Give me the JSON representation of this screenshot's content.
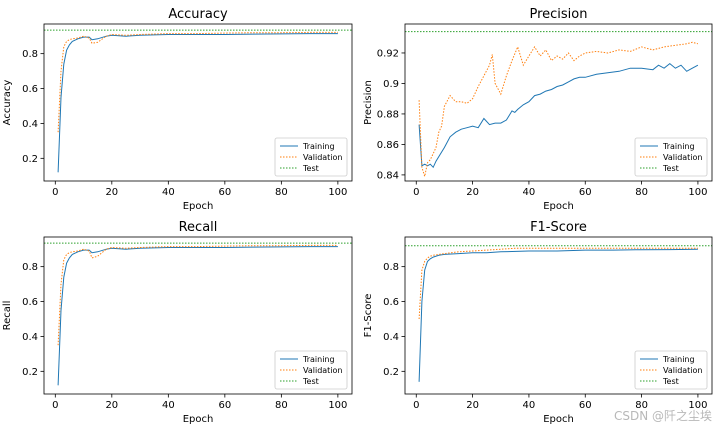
{
  "watermark": "CSDN @阡之尘埃",
  "colors": {
    "training": "#1f77b4",
    "validation": "#ff7f0e",
    "test": "#2ca02c"
  },
  "chart_data": [
    {
      "type": "line",
      "title": "Accuracy",
      "xlabel": "Epoch",
      "ylabel": "Accuracy",
      "xlim": [
        -4,
        105
      ],
      "ylim": [
        0.07,
        0.97
      ],
      "xticks": [
        0,
        20,
        40,
        60,
        80,
        100
      ],
      "yticks": [
        0.2,
        0.4,
        0.6,
        0.8
      ],
      "legend_position": "lower-right",
      "series": [
        {
          "name": "Training",
          "style": "solid",
          "x": [
            1,
            2,
            3,
            4,
            5,
            6,
            8,
            10,
            12,
            13,
            15,
            18,
            20,
            25,
            30,
            40,
            50,
            60,
            70,
            80,
            90,
            100
          ],
          "y": [
            0.12,
            0.55,
            0.74,
            0.82,
            0.85,
            0.87,
            0.885,
            0.895,
            0.895,
            0.88,
            0.885,
            0.9,
            0.905,
            0.9,
            0.905,
            0.91,
            0.91,
            0.91,
            0.912,
            0.913,
            0.915,
            0.915
          ]
        },
        {
          "name": "Validation",
          "style": "dotted",
          "x": [
            1,
            2,
            3,
            4,
            5,
            6,
            8,
            10,
            12,
            13,
            15,
            18,
            20,
            25,
            30,
            40,
            50,
            60,
            70,
            80,
            90,
            100
          ],
          "y": [
            0.35,
            0.7,
            0.84,
            0.87,
            0.88,
            0.885,
            0.89,
            0.9,
            0.89,
            0.86,
            0.865,
            0.9,
            0.91,
            0.905,
            0.91,
            0.915,
            0.915,
            0.918,
            0.92,
            0.92,
            0.922,
            0.922
          ]
        },
        {
          "name": "Test",
          "style": "dashed-hline",
          "y": 0.935
        }
      ]
    },
    {
      "type": "line",
      "title": "Precision",
      "xlabel": "Epoch",
      "ylabel": "Precision",
      "xlim": [
        -4,
        105
      ],
      "ylim": [
        0.836,
        0.939
      ],
      "xticks": [
        0,
        20,
        40,
        60,
        80,
        100
      ],
      "yticks": [
        0.84,
        0.86,
        0.88,
        0.9,
        0.92
      ],
      "legend_position": "lower-right",
      "series": [
        {
          "name": "Training",
          "style": "solid",
          "x": [
            1,
            2,
            3,
            4,
            5,
            6,
            7,
            8,
            10,
            12,
            14,
            16,
            18,
            20,
            22,
            24,
            26,
            28,
            30,
            32,
            34,
            35,
            36,
            38,
            40,
            42,
            44,
            46,
            48,
            50,
            52,
            54,
            56,
            58,
            60,
            64,
            68,
            72,
            76,
            80,
            84,
            86,
            88,
            90,
            92,
            94,
            96,
            98,
            100
          ],
          "y": [
            0.873,
            0.846,
            0.847,
            0.846,
            0.847,
            0.845,
            0.849,
            0.852,
            0.858,
            0.865,
            0.868,
            0.87,
            0.871,
            0.872,
            0.871,
            0.877,
            0.873,
            0.874,
            0.874,
            0.876,
            0.882,
            0.881,
            0.883,
            0.886,
            0.888,
            0.892,
            0.893,
            0.895,
            0.896,
            0.898,
            0.899,
            0.901,
            0.903,
            0.904,
            0.904,
            0.906,
            0.907,
            0.908,
            0.91,
            0.91,
            0.909,
            0.912,
            0.91,
            0.913,
            0.91,
            0.912,
            0.908,
            0.91,
            0.912
          ]
        },
        {
          "name": "Validation",
          "style": "dotted",
          "x": [
            1,
            2,
            3,
            4,
            5,
            6,
            7,
            8,
            9,
            10,
            12,
            14,
            16,
            18,
            20,
            22,
            24,
            26,
            27,
            28,
            30,
            32,
            34,
            36,
            38,
            40,
            42,
            44,
            46,
            48,
            50,
            52,
            54,
            56,
            58,
            60,
            64,
            68,
            72,
            76,
            80,
            84,
            88,
            92,
            96,
            98,
            100
          ],
          "y": [
            0.889,
            0.845,
            0.839,
            0.848,
            0.85,
            0.854,
            0.858,
            0.868,
            0.872,
            0.885,
            0.892,
            0.888,
            0.888,
            0.887,
            0.89,
            0.898,
            0.905,
            0.912,
            0.919,
            0.9,
            0.893,
            0.905,
            0.915,
            0.924,
            0.912,
            0.918,
            0.924,
            0.918,
            0.922,
            0.915,
            0.918,
            0.916,
            0.92,
            0.915,
            0.918,
            0.92,
            0.921,
            0.92,
            0.922,
            0.921,
            0.924,
            0.922,
            0.924,
            0.925,
            0.926,
            0.927,
            0.926
          ]
        },
        {
          "name": "Test",
          "style": "dashed-hline",
          "y": 0.934
        }
      ]
    },
    {
      "type": "line",
      "title": "Recall",
      "xlabel": "Epoch",
      "ylabel": "Recall",
      "xlim": [
        -4,
        105
      ],
      "ylim": [
        0.07,
        0.97
      ],
      "xticks": [
        0,
        20,
        40,
        60,
        80,
        100
      ],
      "yticks": [
        0.2,
        0.4,
        0.6,
        0.8
      ],
      "legend_position": "lower-right",
      "series": [
        {
          "name": "Training",
          "style": "solid",
          "x": [
            1,
            2,
            3,
            4,
            5,
            6,
            8,
            10,
            12,
            13,
            15,
            18,
            20,
            25,
            30,
            40,
            50,
            60,
            70,
            80,
            90,
            100
          ],
          "y": [
            0.12,
            0.55,
            0.74,
            0.82,
            0.85,
            0.87,
            0.885,
            0.895,
            0.895,
            0.88,
            0.885,
            0.9,
            0.905,
            0.9,
            0.905,
            0.91,
            0.91,
            0.91,
            0.912,
            0.913,
            0.915,
            0.915
          ]
        },
        {
          "name": "Validation",
          "style": "dotted",
          "x": [
            1,
            2,
            3,
            4,
            5,
            6,
            8,
            10,
            12,
            13,
            15,
            18,
            20,
            25,
            30,
            40,
            50,
            60,
            70,
            80,
            90,
            100
          ],
          "y": [
            0.35,
            0.7,
            0.84,
            0.87,
            0.88,
            0.885,
            0.89,
            0.9,
            0.89,
            0.85,
            0.86,
            0.9,
            0.91,
            0.905,
            0.91,
            0.915,
            0.915,
            0.918,
            0.92,
            0.92,
            0.922,
            0.922
          ]
        },
        {
          "name": "Test",
          "style": "dashed-hline",
          "y": 0.935
        }
      ]
    },
    {
      "type": "line",
      "title": "F1-Score",
      "xlabel": "Epoch",
      "ylabel": "F1-Score",
      "xlim": [
        -4,
        105
      ],
      "ylim": [
        0.07,
        0.97
      ],
      "xticks": [
        0,
        20,
        40,
        60,
        80,
        100
      ],
      "yticks": [
        0.2,
        0.4,
        0.6,
        0.8
      ],
      "legend_position": "lower-right",
      "series": [
        {
          "name": "Training",
          "style": "solid",
          "x": [
            1,
            2,
            3,
            4,
            5,
            6,
            8,
            10,
            15,
            20,
            25,
            30,
            40,
            50,
            60,
            70,
            80,
            90,
            100
          ],
          "y": [
            0.14,
            0.6,
            0.78,
            0.83,
            0.845,
            0.855,
            0.865,
            0.87,
            0.875,
            0.88,
            0.88,
            0.885,
            0.89,
            0.89,
            0.895,
            0.895,
            0.897,
            0.898,
            0.9
          ]
        },
        {
          "name": "Validation",
          "style": "dotted",
          "x": [
            1,
            2,
            3,
            4,
            5,
            6,
            8,
            10,
            15,
            20,
            25,
            30,
            35,
            40,
            50,
            60,
            70,
            80,
            90,
            100
          ],
          "y": [
            0.5,
            0.78,
            0.83,
            0.85,
            0.86,
            0.865,
            0.87,
            0.875,
            0.885,
            0.89,
            0.895,
            0.9,
            0.905,
            0.905,
            0.905,
            0.905,
            0.905,
            0.905,
            0.905,
            0.905
          ]
        },
        {
          "name": "Test",
          "style": "dashed-hline",
          "y": 0.92
        }
      ]
    }
  ]
}
